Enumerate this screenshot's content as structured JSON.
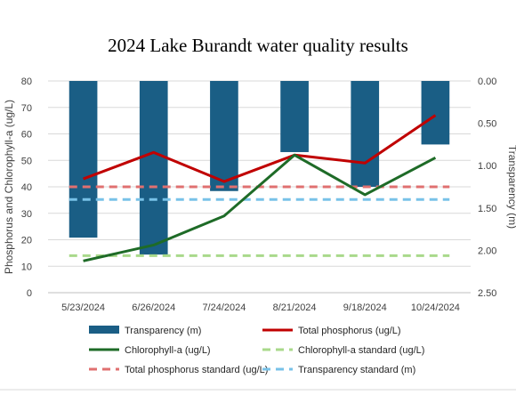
{
  "chart_data": {
    "type": "bar",
    "title": "2024 Lake Burandt water quality results",
    "categories": [
      "5/23/2024",
      "6/26/2024",
      "7/24/2024",
      "8/21/2024",
      "9/18/2024",
      "10/24/2024"
    ],
    "ylabel": "Phosphorus and Chlorophyll-a (ug/L)",
    "y2label": "Transparency (m)",
    "ylim": [
      0,
      80
    ],
    "yticks": [
      "0",
      "10",
      "20",
      "30",
      "40",
      "50",
      "60",
      "70",
      "80"
    ],
    "y2lim": [
      0,
      2.5
    ],
    "y2ticks": [
      "0.00",
      "0.50",
      "1.00",
      "1.50",
      "2.00",
      "2.50"
    ],
    "y2_reversed": true,
    "grid": "horizontal",
    "legend_position": "bottom",
    "bar_series": {
      "name": "Transparency (m)",
      "axis": "right",
      "color": "#1a5e85",
      "values": [
        1.85,
        2.05,
        1.3,
        0.84,
        1.25,
        0.75
      ]
    },
    "line_series": [
      {
        "name": "Total phosphorus (ug/L)",
        "axis": "left",
        "color": "#c00000",
        "values": [
          43,
          53,
          42,
          52,
          49,
          67
        ]
      },
      {
        "name": "Chlorophyll-a (ug/L)",
        "axis": "left",
        "color": "#1e6b27",
        "values": [
          12,
          18,
          29,
          52,
          37,
          51
        ]
      }
    ],
    "standards": [
      {
        "name": "Chlorophyll-a standard (ug/L)",
        "axis": "left",
        "value": 14,
        "color": "#a9d98b"
      },
      {
        "name": "Total phosphorus standard (ug/L)",
        "axis": "left",
        "value": 40,
        "color": "#e07070"
      },
      {
        "name": "Transparency standard (m)",
        "axis": "right",
        "value": 1.4,
        "color": "#78c2e8"
      }
    ],
    "legend_order": [
      "Transparency (m)",
      "Total phosphorus (ug/L)",
      "Chlorophyll-a (ug/L)",
      "Chlorophyll-a standard (ug/L)",
      "Total phosphorus standard (ug/L)",
      "Transparency standard (m)"
    ]
  }
}
